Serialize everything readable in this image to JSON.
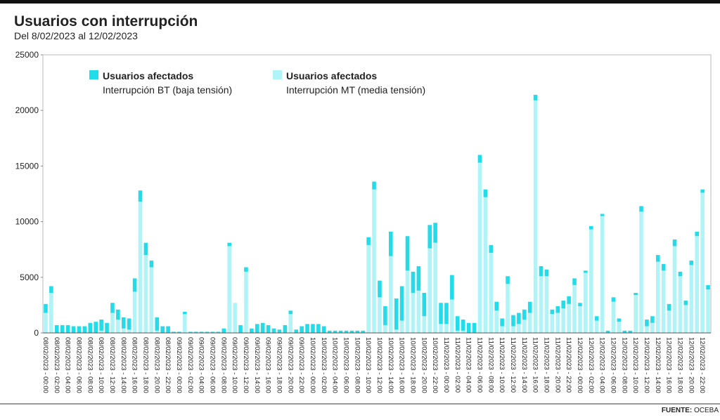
{
  "chart_data": {
    "type": "stacked_bar",
    "title": "Usuarios con interrupción",
    "subtitle": "Del 8/02/2023 al 12/02/2023",
    "source_label": "FUENTE:",
    "source": "OCEBA",
    "categories": [
      "08/02/2023 - 00:00",
      null,
      "08/02/2023 - 02:00",
      null,
      "08/02/2023 - 04:00",
      null,
      "08/02/2023 - 06:00",
      null,
      "08/02/2023 - 08:00",
      null,
      "08/02/2023 - 10:00",
      null,
      "08/02/2023 - 12:00",
      null,
      "08/02/2023 - 14:00",
      null,
      "08/02/2023 - 16:00",
      null,
      "08/02/2023 - 18:00",
      null,
      "08/02/2023 - 20:00",
      null,
      "08/02/2023 - 22:00",
      null,
      "09/02/2023 - 00:00",
      null,
      "09/02/2023 - 02:00",
      null,
      "09/02/2023 - 04:00",
      null,
      "09/02/2023 - 06:00",
      null,
      "09/02/2023 - 08:00",
      null,
      "09/02/2023 - 10:00",
      null,
      "09/02/2023 - 12:00",
      null,
      "09/02/2023 - 14:00",
      null,
      "09/02/2023 - 16:00",
      null,
      "09/02/2023 - 18:00",
      null,
      "09/02/2023 - 20:00",
      null,
      "09/02/2023 - 22:00",
      null,
      "10/02/2023 - 00:00",
      null,
      "10/02/2023 - 02:00",
      null,
      "10/02/2023 - 04:00",
      null,
      "10/02/2023 - 06:00",
      null,
      "10/02/2023 - 08:00",
      null,
      "10/02/2023 - 10:00",
      null,
      "10/02/2023 - 12:00",
      null,
      "10/02/2023 - 14:00",
      null,
      "10/02/2023 - 16:00",
      null,
      "10/02/2023 - 18:00",
      null,
      "10/02/2023 - 20:00",
      null,
      "10/02/2023 - 22:00",
      null,
      "11/02/2023 - 00:00",
      null,
      "11/02/2023 - 02:00",
      null,
      "11/02/2023 - 04:00",
      null,
      "11/02/2023 - 06:00",
      null,
      "11/02/2023 - 08:00",
      null,
      "11/02/2023 - 10:00",
      null,
      "11/02/2023 - 12:00",
      null,
      "11/02/2023 - 14:00",
      null,
      "11/02/2023 - 16:00",
      null,
      "11/02/2023 - 18:00",
      null,
      "11/02/2023 - 20:00",
      null,
      "11/02/2023 - 22:00",
      null,
      "12/02/2023 - 00:00",
      null,
      "12/02/2023 - 02:00",
      null,
      "12/02/2023 - 04:00",
      null,
      "12/02/2023 - 06:00",
      null,
      "12/02/2023 - 08:00",
      null,
      "12/02/2023 - 10:00",
      null,
      "12/02/2023 - 12:00",
      null,
      "12/02/2023 - 14:00",
      null,
      "12/02/2023 - 16:00",
      null,
      "12/02/2023 - 18:00",
      null,
      "12/02/2023 - 20:00",
      null,
      "12/02/2023 - 22:00",
      null
    ],
    "series": [
      {
        "name": "Usuarios afectados",
        "description": "Interrupción BT (baja tensión)",
        "color": "#22dde9",
        "values": [
          800,
          600,
          700,
          700,
          700,
          600,
          600,
          600,
          900,
          1000,
          1000,
          900,
          900,
          900,
          1000,
          1000,
          1200,
          1000,
          1100,
          600,
          1200,
          600,
          600,
          100,
          100,
          200,
          100,
          100,
          100,
          100,
          100,
          100,
          400,
          300,
          0,
          700,
          400,
          400,
          800,
          900,
          700,
          400,
          300,
          700,
          300,
          300,
          600,
          800,
          800,
          800,
          600,
          200,
          200,
          200,
          200,
          200,
          200,
          200,
          700,
          700,
          1500,
          1700,
          2200,
          2800,
          3100,
          3100,
          1900,
          2200,
          2100,
          2100,
          1800,
          1900,
          1900,
          2200,
          1300,
          1000,
          900,
          900,
          700,
          700,
          700,
          800,
          700,
          700,
          1000,
          1000,
          900,
          1000,
          500,
          900,
          600,
          400,
          600,
          700,
          700,
          600,
          300,
          200,
          300,
          400,
          200,
          200,
          400,
          300,
          200,
          200,
          200,
          500,
          600,
          600,
          600,
          600,
          600,
          600,
          400,
          400,
          400,
          400,
          300,
          400
        ]
      },
      {
        "name": "Usuarios afectados",
        "description": "Interrupción MT (media tensión)",
        "color": "#b0f4f8",
        "values": [
          1800,
          3600,
          0,
          0,
          0,
          0,
          0,
          0,
          0,
          0,
          200,
          0,
          1800,
          1200,
          400,
          300,
          3700,
          11800,
          7000,
          5900,
          200,
          0,
          0,
          0,
          0,
          1700,
          0,
          0,
          0,
          0,
          0,
          0,
          0,
          7800,
          2700,
          0,
          5500,
          0,
          0,
          0,
          0,
          0,
          0,
          0,
          1700,
          0,
          0,
          0,
          0,
          0,
          0,
          0,
          0,
          0,
          0,
          0,
          0,
          0,
          7900,
          12900,
          3200,
          700,
          6900,
          300,
          1100,
          5600,
          3600,
          3800,
          1500,
          7600,
          8100,
          800,
          800,
          3000,
          200,
          200,
          0,
          0,
          15300,
          12200,
          7200,
          2000,
          600,
          4400,
          600,
          800,
          1200,
          1800,
          20900,
          5100,
          5100,
          1700,
          1800,
          2200,
          2600,
          4300,
          2400,
          5400,
          9300,
          1100,
          10500,
          0,
          2800,
          1000,
          0,
          0,
          3400,
          10900,
          600,
          900,
          6400,
          5600,
          2000,
          7800,
          5100,
          2500,
          6100,
          8700,
          12600,
          3900
        ]
      }
    ],
    "ylim": [
      0,
      25000
    ],
    "yticks": [
      0,
      5000,
      10000,
      15000,
      20000,
      25000
    ]
  }
}
